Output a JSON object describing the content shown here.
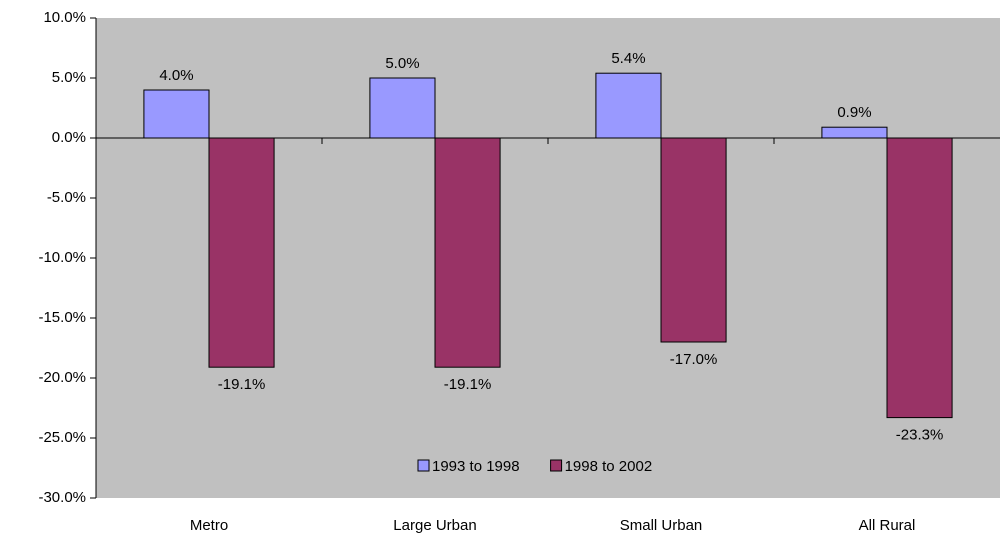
{
  "chart_data": {
    "type": "bar",
    "categories": [
      "Metro",
      "Large Urban",
      "Small Urban",
      "All Rural"
    ],
    "series": [
      {
        "name": "1993 to 1998",
        "color": "#9999ff",
        "values": [
          4.0,
          5.0,
          5.4,
          0.9
        ],
        "value_labels": [
          "4.0%",
          "5.0%",
          "5.4%",
          "0.9%"
        ]
      },
      {
        "name": "1998 to 2002",
        "color": "#993366",
        "values": [
          -19.1,
          -19.1,
          -17.0,
          -23.3
        ],
        "value_labels": [
          "-19.1%",
          "-19.1%",
          "-17.0%",
          "-23.3%"
        ]
      }
    ],
    "ylim": [
      -30,
      10
    ],
    "yticks": [
      {
        "value": -30,
        "label": "-30.0%"
      },
      {
        "value": -25,
        "label": "-25.0%"
      },
      {
        "value": -20,
        "label": "-20.0%"
      },
      {
        "value": -15,
        "label": "-15.0%"
      },
      {
        "value": -10,
        "label": "-10.0%"
      },
      {
        "value": -5,
        "label": "-5.0%"
      },
      {
        "value": 0,
        "label": "0.0%"
      },
      {
        "value": 5,
        "label": "5.0%"
      },
      {
        "value": 10,
        "label": "10.0%"
      }
    ],
    "plot_background": "#c0c0c0",
    "legend": "bottom"
  }
}
